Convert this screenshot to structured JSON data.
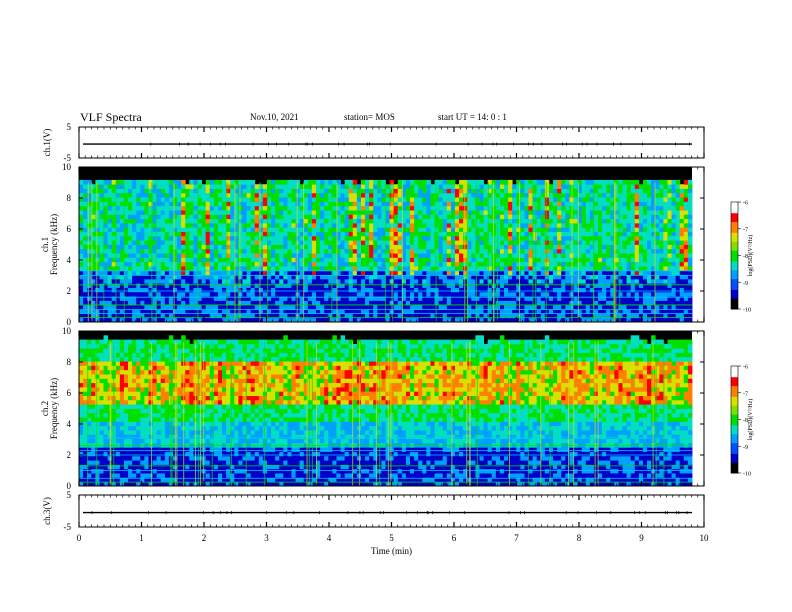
{
  "header": {
    "title": "VLF Spectra",
    "date": "Nov.10, 2021",
    "station": "station= MOS",
    "start": "start  UT =   14: 0  : 1"
  },
  "chart_data": {
    "type": "heatmap",
    "xlabel": "Time  (min)",
    "xlim": [
      0,
      10
    ],
    "xticks": [
      "0",
      "1",
      "2",
      "3",
      "4",
      "5",
      "6",
      "7",
      "8",
      "9",
      "10"
    ],
    "panels": [
      {
        "id": "ch1-waveform",
        "kind": "waveform",
        "ylabel": "ch.1(V)",
        "yticks": [
          "5",
          "-5"
        ],
        "ylim": [
          -5,
          5
        ]
      },
      {
        "id": "ch1-spectrogram",
        "kind": "spectrogram",
        "ylabel_line1": "ch.1",
        "ylabel_line2": "Frequency  (kHz)",
        "yticks": [
          "0",
          "2",
          "4",
          "6",
          "8",
          "10"
        ],
        "ylim": [
          0,
          10
        ],
        "colorbar": {
          "label": "log(PSD)(V²/Hz)",
          "ticks": [
            "-6",
            "-7",
            "-8",
            "-9",
            "-10"
          ],
          "range": [
            -10,
            -6
          ]
        }
      },
      {
        "id": "ch2-spectrogram",
        "kind": "spectrogram",
        "ylabel_line1": "ch.2",
        "ylabel_line2": "Frequency  (kHz)",
        "yticks": [
          "0",
          "2",
          "4",
          "6",
          "8",
          "10"
        ],
        "ylim": [
          0,
          10
        ],
        "colorbar": {
          "label": "log(PSD)(V²/Hz)",
          "ticks": [
            "-6",
            "-7",
            "-8",
            "-9",
            "-10"
          ],
          "range": [
            -10,
            -6
          ]
        }
      },
      {
        "id": "ch3-waveform",
        "kind": "waveform",
        "ylabel": "ch.3(V)",
        "yticks": [
          "5",
          "-5"
        ],
        "ylim": [
          -5,
          5
        ]
      }
    ]
  },
  "colors": {
    "colormap": [
      "#000000",
      "#0000c8",
      "#00a0ff",
      "#00e0c0",
      "#00e000",
      "#d8e000",
      "#ff8000",
      "#ff0000",
      "#ffffff"
    ]
  }
}
